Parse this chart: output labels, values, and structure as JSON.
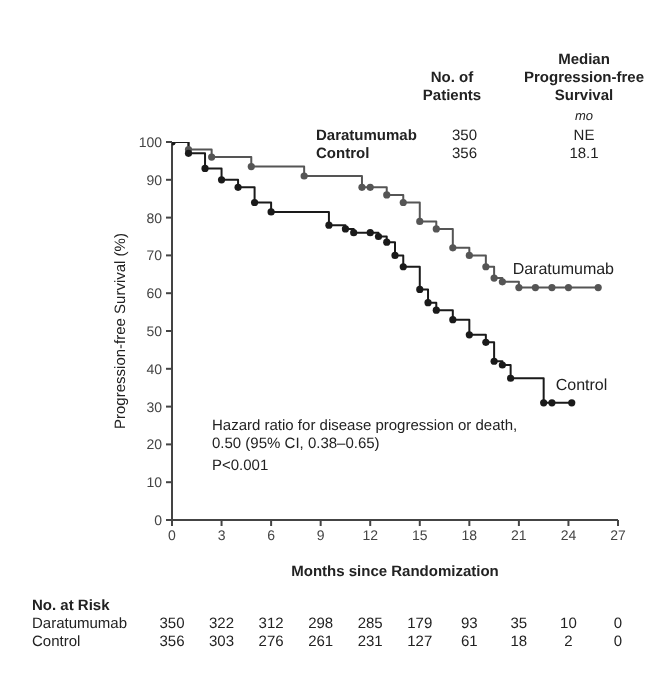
{
  "chart_data": {
    "type": "step",
    "xlabel": "Months since Randomization",
    "ylabel": "Progression-free Survival (%)",
    "xlim": [
      0,
      27
    ],
    "ylim": [
      0,
      100
    ],
    "xticks": [
      0,
      3,
      6,
      9,
      12,
      15,
      18,
      21,
      24,
      27
    ],
    "yticks": [
      0,
      10,
      20,
      30,
      40,
      50,
      60,
      70,
      80,
      90,
      100
    ],
    "marker": "circle",
    "series": [
      {
        "name": "Daratumumab",
        "color": "#555555",
        "x": [
          0,
          1,
          2.4,
          4.8,
          8,
          11.5,
          12,
          13,
          14,
          15,
          16,
          17,
          18,
          19,
          19.5,
          20,
          21,
          22,
          23,
          24,
          25.8
        ],
        "values": [
          100,
          98,
          96,
          93.5,
          91,
          88,
          88,
          86,
          84,
          79,
          77,
          72,
          70,
          67,
          64,
          63,
          61.5,
          61.5,
          61.5,
          61.5,
          61.5
        ]
      },
      {
        "name": "Control",
        "color": "#1a1a1a",
        "x": [
          0,
          1,
          2,
          3,
          4,
          5,
          6,
          9.5,
          10.5,
          11,
          12,
          12.5,
          13,
          13.5,
          14,
          15,
          15.5,
          16,
          17,
          18,
          19,
          19.5,
          20,
          20.5,
          22.5,
          23,
          24.2
        ],
        "values": [
          100,
          97,
          93,
          90,
          88,
          84,
          81.5,
          78,
          77,
          76,
          76,
          75,
          73.5,
          70,
          67,
          61,
          57.5,
          55.5,
          53,
          49,
          47,
          42,
          41,
          37.5,
          31,
          31,
          31
        ]
      }
    ],
    "annotations": [
      "No. of Patients",
      "Median Progression-free Survival",
      "mo",
      "Daratumumab",
      "350",
      "NE",
      "Control",
      "356",
      "18.1",
      "Hazard ratio for disease progression or death, 0.50 (95% CI, 0.38–0.65)",
      "P<0.001",
      "No. at Risk",
      "Daratumumab",
      "Control",
      "350",
      "322",
      "312",
      "298",
      "285",
      "179",
      "93",
      "35",
      "10",
      "0",
      "356",
      "303",
      "276",
      "261",
      "231",
      "127",
      "61",
      "18",
      "2",
      "0"
    ]
  }
}
